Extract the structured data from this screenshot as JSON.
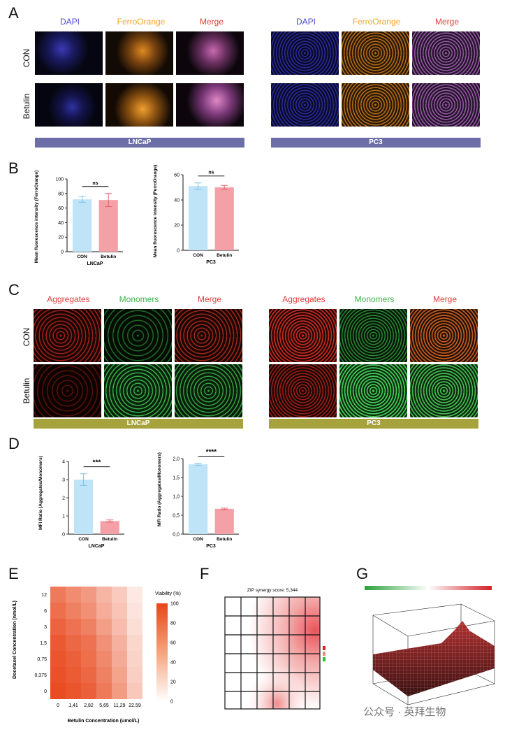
{
  "panels": {
    "A": "A",
    "B": "B",
    "C": "C",
    "D": "D",
    "E": "E",
    "F": "F",
    "G": "G"
  },
  "panelA": {
    "cols": [
      "DAPI",
      "FerroOrange",
      "Merge"
    ],
    "rows": [
      "CON",
      "Betulin"
    ],
    "cells": [
      "LNCaP",
      "PC3"
    ]
  },
  "panelB": {
    "lncap": {
      "ylabel": "Mean fluorescence intensity (FerroOrange)",
      "ticks": [
        "0",
        "20",
        "40",
        "60",
        "80",
        "100"
      ],
      "sig": "ns",
      "xcats": [
        "CON",
        "Betulin"
      ],
      "cell": "LNCaP",
      "values": [
        72,
        71
      ],
      "errors": [
        4,
        9
      ],
      "ymax": 100
    },
    "pc3": {
      "ylabel": "Mean fluorescence intensity (FerroOrange)",
      "ticks": [
        "0",
        "20",
        "40",
        "60"
      ],
      "sig": "ns",
      "xcats": [
        "CON",
        "Betulin"
      ],
      "cell": "PC3",
      "values": [
        51,
        50
      ],
      "errors": [
        2.5,
        1.5
      ],
      "ymax": 60
    }
  },
  "panelC": {
    "cols": [
      "Aggregates",
      "Monomers",
      "Merge"
    ],
    "rows": [
      "CON",
      "Betulin"
    ],
    "cells": [
      "LNCaP",
      "PC3"
    ]
  },
  "panelD": {
    "lncap": {
      "ylabel": "MFI Ratio (Aggregates/Monomers)",
      "ticks": [
        "0",
        "1",
        "2",
        "3",
        "4"
      ],
      "sig": "***",
      "xcats": [
        "CON",
        "Betulin"
      ],
      "cell": "LNCaP",
      "values": [
        3.0,
        0.72
      ],
      "errors": [
        0.32,
        0.06
      ],
      "ymax": 4
    },
    "pc3": {
      "ylabel": "MFI Ratio (Aggregates/Monomers)",
      "ticks": [
        "0,0",
        "0,5",
        "1,0",
        "1,5",
        "2,0"
      ],
      "sig": "****",
      "xcats": [
        "CON",
        "Betulin"
      ],
      "cell": "PC3",
      "values": [
        1.85,
        0.67
      ],
      "errors": [
        0.03,
        0.02
      ],
      "ymax": 2.0
    }
  },
  "chart_data": [
    {
      "type": "bar",
      "title": "",
      "xlabel": "LNCaP",
      "ylabel": "Mean fluorescence intensity (FerroOrange)",
      "categories": [
        "CON",
        "Betulin"
      ],
      "values": [
        72,
        71
      ],
      "ylim": [
        0,
        100
      ]
    },
    {
      "type": "bar",
      "title": "",
      "xlabel": "PC3",
      "ylabel": "Mean fluorescence intensity (FerroOrange)",
      "categories": [
        "CON",
        "Betulin"
      ],
      "values": [
        51,
        50
      ],
      "ylim": [
        0,
        60
      ]
    },
    {
      "type": "bar",
      "title": "",
      "xlabel": "LNCaP",
      "ylabel": "MFI Ratio (Aggregates/Monomers)",
      "categories": [
        "CON",
        "Betulin"
      ],
      "values": [
        3.0,
        0.72
      ],
      "ylim": [
        0,
        4
      ]
    },
    {
      "type": "bar",
      "title": "",
      "xlabel": "PC3",
      "ylabel": "MFI Ratio (Aggregates/Monomers)",
      "categories": [
        "CON",
        "Betulin"
      ],
      "values": [
        1.85,
        0.67
      ],
      "ylim": [
        0,
        2.0
      ]
    },
    {
      "type": "heatmap",
      "title": "",
      "xlabel": "Betulin Concentration (umol/L)",
      "ylabel": "Docetaxel Concentration (nmol/L)",
      "x": [
        "0",
        "1,41",
        "2,82",
        "5,65",
        "11,29",
        "22,59"
      ],
      "y": [
        "12",
        "6",
        "3",
        "1,5",
        "0,75",
        "0,375",
        "0"
      ],
      "legend_title": "Viability (%)",
      "legend_ticks": [
        "0",
        "20",
        "40",
        "60",
        "80",
        "100"
      ],
      "values": [
        [
          72,
          62,
          55,
          40,
          28,
          12
        ],
        [
          78,
          68,
          60,
          45,
          32,
          15
        ],
        [
          84,
          76,
          68,
          52,
          36,
          18
        ],
        [
          90,
          82,
          76,
          60,
          42,
          22
        ],
        [
          92,
          86,
          78,
          64,
          46,
          24
        ],
        [
          94,
          88,
          82,
          68,
          50,
          26
        ],
        [
          97,
          92,
          86,
          72,
          54,
          30
        ]
      ]
    }
  ],
  "panelF": {
    "title": "ZIP synergy score: 5,344"
  },
  "watermark": "公众号 · 英拜生物"
}
